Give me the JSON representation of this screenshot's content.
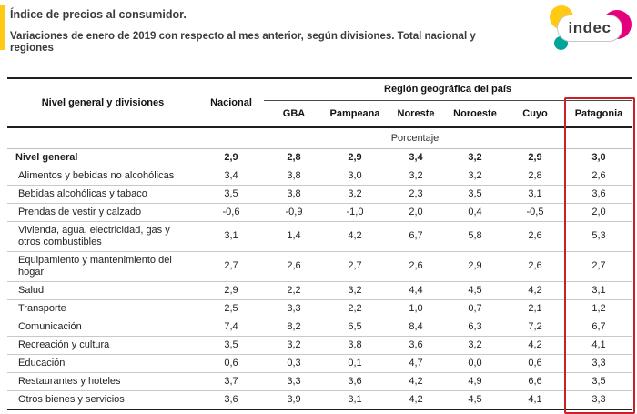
{
  "header": {
    "title_line1": "Índice de precios al consumidor.",
    "title_line2": "Variaciones de enero de 2019 con respecto al mes anterior, según divisiones. Total nacional y regiones",
    "accent_bar_color": "#ffc914",
    "logo": {
      "text": "indec",
      "circle_colors": {
        "yellow": "#ffc914",
        "teal": "#00a49a",
        "pink": "#e5007d"
      }
    }
  },
  "table": {
    "divisions_header": "Nivel general y divisiones",
    "national_header": "Nacional",
    "region_group_header": "Región geográfica del país",
    "region_columns": [
      "GBA",
      "Pampeana",
      "Noreste",
      "Noroeste",
      "Cuyo",
      "Patagonia"
    ],
    "unit_label": "Porcentaje",
    "highlighted_column": "Patagonia",
    "highlight_color": "#cb2026",
    "rows": [
      {
        "label": "Nivel general",
        "bold": true,
        "values": [
          "2,9",
          "2,8",
          "2,9",
          "3,4",
          "3,2",
          "2,9",
          "3,0"
        ]
      },
      {
        "label": "Alimentos y bebidas no alcohólicas",
        "bold": false,
        "values": [
          "3,4",
          "3,8",
          "3,0",
          "3,2",
          "3,2",
          "2,8",
          "2,6"
        ]
      },
      {
        "label": "Bebidas alcohólicas y tabaco",
        "bold": false,
        "values": [
          "3,5",
          "3,8",
          "3,2",
          "2,3",
          "3,5",
          "3,1",
          "3,6"
        ]
      },
      {
        "label": "Prendas de vestir y calzado",
        "bold": false,
        "values": [
          "-0,6",
          "-0,9",
          "-1,0",
          "2,0",
          "0,4",
          "-0,5",
          "2,0"
        ]
      },
      {
        "label": "Vivienda, agua, electricidad, gas y otros combustibles",
        "bold": false,
        "values": [
          "3,1",
          "1,4",
          "4,2",
          "6,7",
          "5,8",
          "2,6",
          "5,3"
        ]
      },
      {
        "label": "Equipamiento y mantenimiento del hogar",
        "bold": false,
        "values": [
          "2,7",
          "2,6",
          "2,7",
          "2,6",
          "2,9",
          "2,6",
          "2,7"
        ]
      },
      {
        "label": "Salud",
        "bold": false,
        "values": [
          "2,9",
          "2,2",
          "3,2",
          "4,4",
          "4,5",
          "4,2",
          "3,1"
        ]
      },
      {
        "label": "Transporte",
        "bold": false,
        "values": [
          "2,5",
          "3,3",
          "2,2",
          "1,0",
          "0,7",
          "2,1",
          "1,2"
        ]
      },
      {
        "label": "Comunicación",
        "bold": false,
        "values": [
          "7,4",
          "8,2",
          "6,5",
          "8,4",
          "6,3",
          "7,2",
          "6,7"
        ]
      },
      {
        "label": "Recreación y cultura",
        "bold": false,
        "values": [
          "3,5",
          "3,2",
          "3,8",
          "3,6",
          "3,2",
          "4,2",
          "4,1"
        ]
      },
      {
        "label": "Educación",
        "bold": false,
        "values": [
          "0,6",
          "0,3",
          "0,1",
          "4,7",
          "0,0",
          "0,6",
          "3,3"
        ]
      },
      {
        "label": "Restaurantes y hoteles",
        "bold": false,
        "values": [
          "3,7",
          "3,3",
          "3,6",
          "4,2",
          "4,9",
          "6,6",
          "3,5"
        ]
      },
      {
        "label": "Otros bienes y servicios",
        "bold": false,
        "values": [
          "3,6",
          "3,9",
          "3,1",
          "4,2",
          "4,5",
          "4,1",
          "3,3"
        ]
      }
    ]
  }
}
